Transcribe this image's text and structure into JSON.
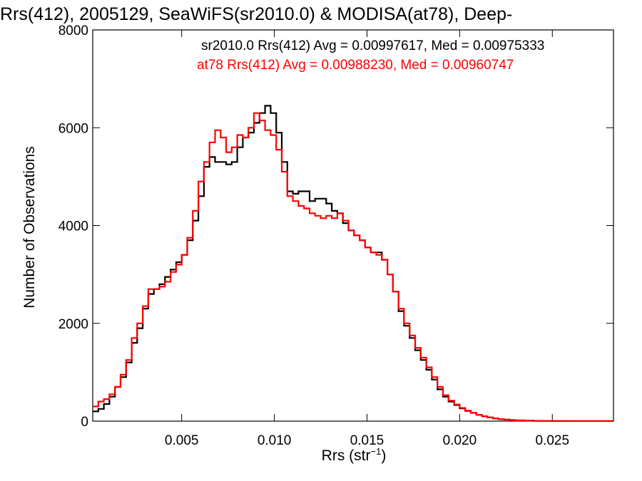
{
  "chart_data": {
    "type": "line",
    "title": "Rrs(412), 2005129, SeaWiFS(sr2010.0) & MODISA(at78), Deep-",
    "xlabel": "Rrs (str",
    "xlabel_superscript": "−1",
    "xlabel_close": ")",
    "ylabel": "Number of Observations",
    "xlim": [
      0.0002,
      0.0283
    ],
    "ylim": [
      0,
      8000
    ],
    "x_ticks": [
      0.005,
      0.01,
      0.015,
      0.02,
      0.025
    ],
    "x_tick_labels": [
      "0.005",
      "0.010",
      "0.015",
      "0.020",
      "0.025"
    ],
    "y_ticks": [
      0,
      2000,
      4000,
      6000,
      8000
    ],
    "y_tick_labels": [
      "0",
      "2000",
      "4000",
      "6000",
      "8000"
    ],
    "grid": false,
    "step": true,
    "annotations": [
      {
        "text": "sr2010.0 Rrs(412) Avg = 0.00997617, Med = 0.00975333",
        "color": "#000000"
      },
      {
        "text": "at78 Rrs(412) Avg = 0.00988230, Med = 0.00960747",
        "color": "#ff0000"
      }
    ],
    "series": [
      {
        "name": "sr2010.0",
        "color": "#000000",
        "points": [
          [
            0.0002,
            200
          ],
          [
            0.0005,
            250
          ],
          [
            0.0008,
            350
          ],
          [
            0.0011,
            500
          ],
          [
            0.0014,
            700
          ],
          [
            0.0017,
            900
          ],
          [
            0.002,
            1200
          ],
          [
            0.0023,
            1600
          ],
          [
            0.0026,
            1900
          ],
          [
            0.0029,
            2300
          ],
          [
            0.0032,
            2600
          ],
          [
            0.0035,
            2700
          ],
          [
            0.0038,
            2800
          ],
          [
            0.0041,
            2950
          ],
          [
            0.0044,
            3100
          ],
          [
            0.0047,
            3250
          ],
          [
            0.005,
            3400
          ],
          [
            0.0053,
            3700
          ],
          [
            0.0056,
            4100
          ],
          [
            0.0059,
            4600
          ],
          [
            0.0062,
            5200
          ],
          [
            0.0065,
            5400
          ],
          [
            0.0068,
            5300
          ],
          [
            0.0071,
            5300
          ],
          [
            0.0074,
            5250
          ],
          [
            0.0077,
            5300
          ],
          [
            0.008,
            5600
          ],
          [
            0.0083,
            5800
          ],
          [
            0.0086,
            5900
          ],
          [
            0.0089,
            6100
          ],
          [
            0.0092,
            6300
          ],
          [
            0.0095,
            6450
          ],
          [
            0.0098,
            6300
          ],
          [
            0.0101,
            5900
          ],
          [
            0.0104,
            5300
          ],
          [
            0.0107,
            4700
          ],
          [
            0.011,
            4650
          ],
          [
            0.0113,
            4700
          ],
          [
            0.0116,
            4700
          ],
          [
            0.0119,
            4500
          ],
          [
            0.0122,
            4550
          ],
          [
            0.0125,
            4550
          ],
          [
            0.0128,
            4450
          ],
          [
            0.0131,
            4300
          ],
          [
            0.0134,
            4250
          ],
          [
            0.0137,
            4050
          ],
          [
            0.014,
            3900
          ],
          [
            0.0143,
            3800
          ],
          [
            0.0146,
            3700
          ],
          [
            0.0149,
            3550
          ],
          [
            0.0152,
            3450
          ],
          [
            0.0155,
            3450
          ],
          [
            0.0158,
            3300
          ],
          [
            0.0161,
            3000
          ],
          [
            0.0164,
            2650
          ],
          [
            0.0167,
            2250
          ],
          [
            0.017,
            1950
          ],
          [
            0.0173,
            1700
          ],
          [
            0.0176,
            1450
          ],
          [
            0.0179,
            1250
          ],
          [
            0.0182,
            1050
          ],
          [
            0.0185,
            850
          ],
          [
            0.0188,
            650
          ],
          [
            0.0191,
            500
          ],
          [
            0.0194,
            400
          ],
          [
            0.0197,
            330
          ],
          [
            0.02,
            260
          ],
          [
            0.0203,
            210
          ],
          [
            0.0206,
            170
          ],
          [
            0.0209,
            130
          ],
          [
            0.0212,
            100
          ],
          [
            0.0215,
            75
          ],
          [
            0.0218,
            55
          ],
          [
            0.0221,
            40
          ],
          [
            0.0224,
            30
          ],
          [
            0.0227,
            22
          ],
          [
            0.023,
            15
          ],
          [
            0.0235,
            10
          ],
          [
            0.024,
            6
          ],
          [
            0.025,
            3
          ],
          [
            0.026,
            2
          ],
          [
            0.027,
            1
          ],
          [
            0.0283,
            1
          ]
        ]
      },
      {
        "name": "at78",
        "color": "#ff0000",
        "points": [
          [
            0.0002,
            300
          ],
          [
            0.0005,
            400
          ],
          [
            0.0008,
            450
          ],
          [
            0.0011,
            550
          ],
          [
            0.0014,
            700
          ],
          [
            0.0017,
            950
          ],
          [
            0.002,
            1250
          ],
          [
            0.0023,
            1700
          ],
          [
            0.0026,
            2000
          ],
          [
            0.0029,
            2350
          ],
          [
            0.0032,
            2700
          ],
          [
            0.0035,
            2700
          ],
          [
            0.0038,
            2750
          ],
          [
            0.0041,
            2850
          ],
          [
            0.0044,
            3050
          ],
          [
            0.0047,
            3200
          ],
          [
            0.005,
            3400
          ],
          [
            0.0053,
            3750
          ],
          [
            0.0056,
            4300
          ],
          [
            0.0059,
            4900
          ],
          [
            0.0062,
            5300
          ],
          [
            0.0065,
            5700
          ],
          [
            0.0068,
            5950
          ],
          [
            0.0071,
            5800
          ],
          [
            0.0074,
            5500
          ],
          [
            0.0077,
            5600
          ],
          [
            0.008,
            5850
          ],
          [
            0.0083,
            5800
          ],
          [
            0.0086,
            6000
          ],
          [
            0.0089,
            6300
          ],
          [
            0.0092,
            6150
          ],
          [
            0.0095,
            5950
          ],
          [
            0.0098,
            5850
          ],
          [
            0.0101,
            5550
          ],
          [
            0.0104,
            5100
          ],
          [
            0.0107,
            4600
          ],
          [
            0.011,
            4500
          ],
          [
            0.0113,
            4400
          ],
          [
            0.0116,
            4350
          ],
          [
            0.0119,
            4250
          ],
          [
            0.0122,
            4200
          ],
          [
            0.0125,
            4150
          ],
          [
            0.0128,
            4200
          ],
          [
            0.0131,
            4150
          ],
          [
            0.0134,
            4250
          ],
          [
            0.0137,
            4100
          ],
          [
            0.014,
            3900
          ],
          [
            0.0143,
            3800
          ],
          [
            0.0146,
            3700
          ],
          [
            0.0149,
            3550
          ],
          [
            0.0152,
            3450
          ],
          [
            0.0155,
            3400
          ],
          [
            0.0158,
            3300
          ],
          [
            0.0161,
            3000
          ],
          [
            0.0164,
            2650
          ],
          [
            0.0167,
            2300
          ],
          [
            0.017,
            2000
          ],
          [
            0.0173,
            1750
          ],
          [
            0.0176,
            1500
          ],
          [
            0.0179,
            1300
          ],
          [
            0.0182,
            1100
          ],
          [
            0.0185,
            900
          ],
          [
            0.0188,
            700
          ],
          [
            0.0191,
            530
          ],
          [
            0.0194,
            420
          ],
          [
            0.0197,
            340
          ],
          [
            0.02,
            270
          ],
          [
            0.0203,
            215
          ],
          [
            0.0206,
            170
          ],
          [
            0.0209,
            130
          ],
          [
            0.0212,
            100
          ],
          [
            0.0215,
            75
          ],
          [
            0.0218,
            55
          ],
          [
            0.0221,
            40
          ],
          [
            0.0224,
            30
          ],
          [
            0.0227,
            22
          ],
          [
            0.023,
            15
          ],
          [
            0.0235,
            10
          ],
          [
            0.024,
            6
          ],
          [
            0.025,
            3
          ],
          [
            0.026,
            2
          ],
          [
            0.027,
            1
          ],
          [
            0.0283,
            1
          ]
        ]
      }
    ]
  }
}
